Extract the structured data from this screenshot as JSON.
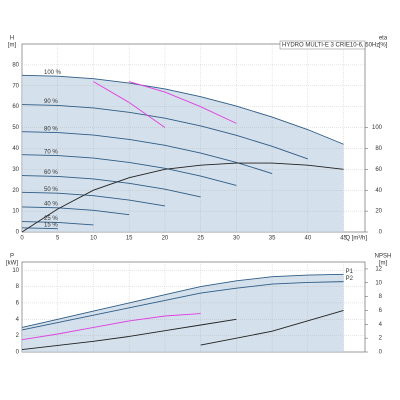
{
  "chart_data": [
    {
      "type": "line",
      "title": "HYDRO MULTI-E 3 CRIE10-6, 50Hz",
      "ylabel": [
        "H",
        "[m]"
      ],
      "y2label": [
        "eta",
        "[%]"
      ],
      "xlabel": "Q [m³/h]",
      "x": [
        0,
        5,
        10,
        15,
        20,
        25,
        30,
        35,
        40,
        45
      ],
      "xlim": [
        0,
        48
      ],
      "xticks": [
        0,
        5,
        10,
        15,
        20,
        25,
        30,
        35,
        40,
        45
      ],
      "ylim": [
        0,
        90
      ],
      "yticks": [
        0,
        10,
        20,
        30,
        40,
        50,
        60,
        70,
        80
      ],
      "y2lim": [
        0,
        180
      ],
      "y2ticks": [
        0,
        20,
        40,
        60,
        80,
        100
      ],
      "grid": true,
      "area_color": "#c9d8e6",
      "series_label": "start",
      "series": [
        {
          "name": "100 %",
          "color": "#2f5c85",
          "values": [
            75,
            74.6,
            73.4,
            71.3,
            68.5,
            64.8,
            60.3,
            55,
            49,
            42
          ]
        },
        {
          "name": "90 %",
          "color": "#2f5c85",
          "values": [
            61,
            60.6,
            59.4,
            57.3,
            54.5,
            50.8,
            46.3,
            41,
            35,
            null
          ]
        },
        {
          "name": "80 %",
          "color": "#2f5c85",
          "values": [
            48,
            47.6,
            46.4,
            44.3,
            41.5,
            37.8,
            33.3,
            28,
            null,
            null
          ]
        },
        {
          "name": "70 %",
          "color": "#2f5c85",
          "values": [
            37,
            36.6,
            35.4,
            33.3,
            30.5,
            26.8,
            22.3,
            null,
            null,
            null
          ]
        },
        {
          "name": "60 %",
          "color": "#2f5c85",
          "values": [
            27,
            26.6,
            25.4,
            23.3,
            20.5,
            16.8,
            null,
            null,
            null,
            null
          ]
        },
        {
          "name": "50 %",
          "color": "#2f5c85",
          "values": [
            19,
            18.6,
            17.4,
            15.3,
            12.5,
            null,
            null,
            null,
            null,
            null
          ]
        },
        {
          "name": "40 %",
          "color": "#2f5c85",
          "values": [
            12,
            11.6,
            10.4,
            8.3,
            null,
            null,
            null,
            null,
            null,
            null
          ]
        },
        {
          "name": "25 %",
          "color": "#2f5c85",
          "values": [
            5,
            4.6,
            3.4,
            null,
            null,
            null,
            null,
            null,
            null,
            null
          ]
        },
        {
          "name": "15 %",
          "color": "#2f5c85",
          "values": [
            2,
            1.6,
            null,
            null,
            null,
            null,
            null,
            null,
            null,
            null
          ]
        },
        {
          "axis": "y2",
          "color": "#222222",
          "values": [
            0,
            22,
            40,
            52,
            60,
            64,
            66,
            66,
            64,
            60
          ]
        },
        {
          "color": "#e040e0",
          "values": [
            null,
            null,
            72,
            62,
            50,
            null,
            null,
            null,
            null,
            null
          ]
        },
        {
          "color": "#e040e0",
          "values": [
            null,
            null,
            null,
            72,
            67,
            60,
            52,
            null,
            null,
            null
          ]
        }
      ]
    },
    {
      "type": "line",
      "ylabel": [
        "P",
        "[kW]"
      ],
      "y2label": [
        "NPSH",
        "[m]"
      ],
      "x": [
        0,
        5,
        10,
        15,
        20,
        25,
        30,
        35,
        40,
        45
      ],
      "xlim": [
        0,
        48
      ],
      "xticks": [
        0,
        5,
        10,
        15,
        20,
        25,
        30,
        35,
        40,
        45
      ],
      "ylim": [
        0,
        11
      ],
      "yticks": [
        0,
        2,
        4,
        6,
        8,
        10
      ],
      "y2lim": [
        0,
        13
      ],
      "y2ticks": [
        0,
        2,
        4,
        6,
        8,
        10,
        12
      ],
      "grid": true,
      "area_color": "#c9d8e6",
      "series_label": "end",
      "series": [
        {
          "name": "P1",
          "color": "#2f5c85",
          "values": [
            3,
            4,
            5,
            6,
            7,
            8,
            8.7,
            9.2,
            9.4,
            9.5
          ]
        },
        {
          "name": "P2",
          "color": "#2f5c85",
          "values": [
            2.7,
            3.6,
            4.5,
            5.4,
            6.3,
            7.2,
            7.8,
            8.3,
            8.5,
            8.6
          ]
        },
        {
          "color": "#e040e0",
          "values": [
            1.5,
            2.2,
            3,
            3.8,
            4.4,
            4.7,
            null,
            null,
            null,
            null
          ]
        },
        {
          "color": "#222222",
          "values": [
            0.3,
            0.8,
            1.3,
            1.9,
            2.6,
            3.3,
            4,
            null,
            null,
            null
          ]
        },
        {
          "axis": "y2",
          "color": "#222222",
          "values": [
            null,
            null,
            null,
            null,
            null,
            1,
            2,
            3,
            4.5,
            6
          ]
        }
      ]
    }
  ]
}
